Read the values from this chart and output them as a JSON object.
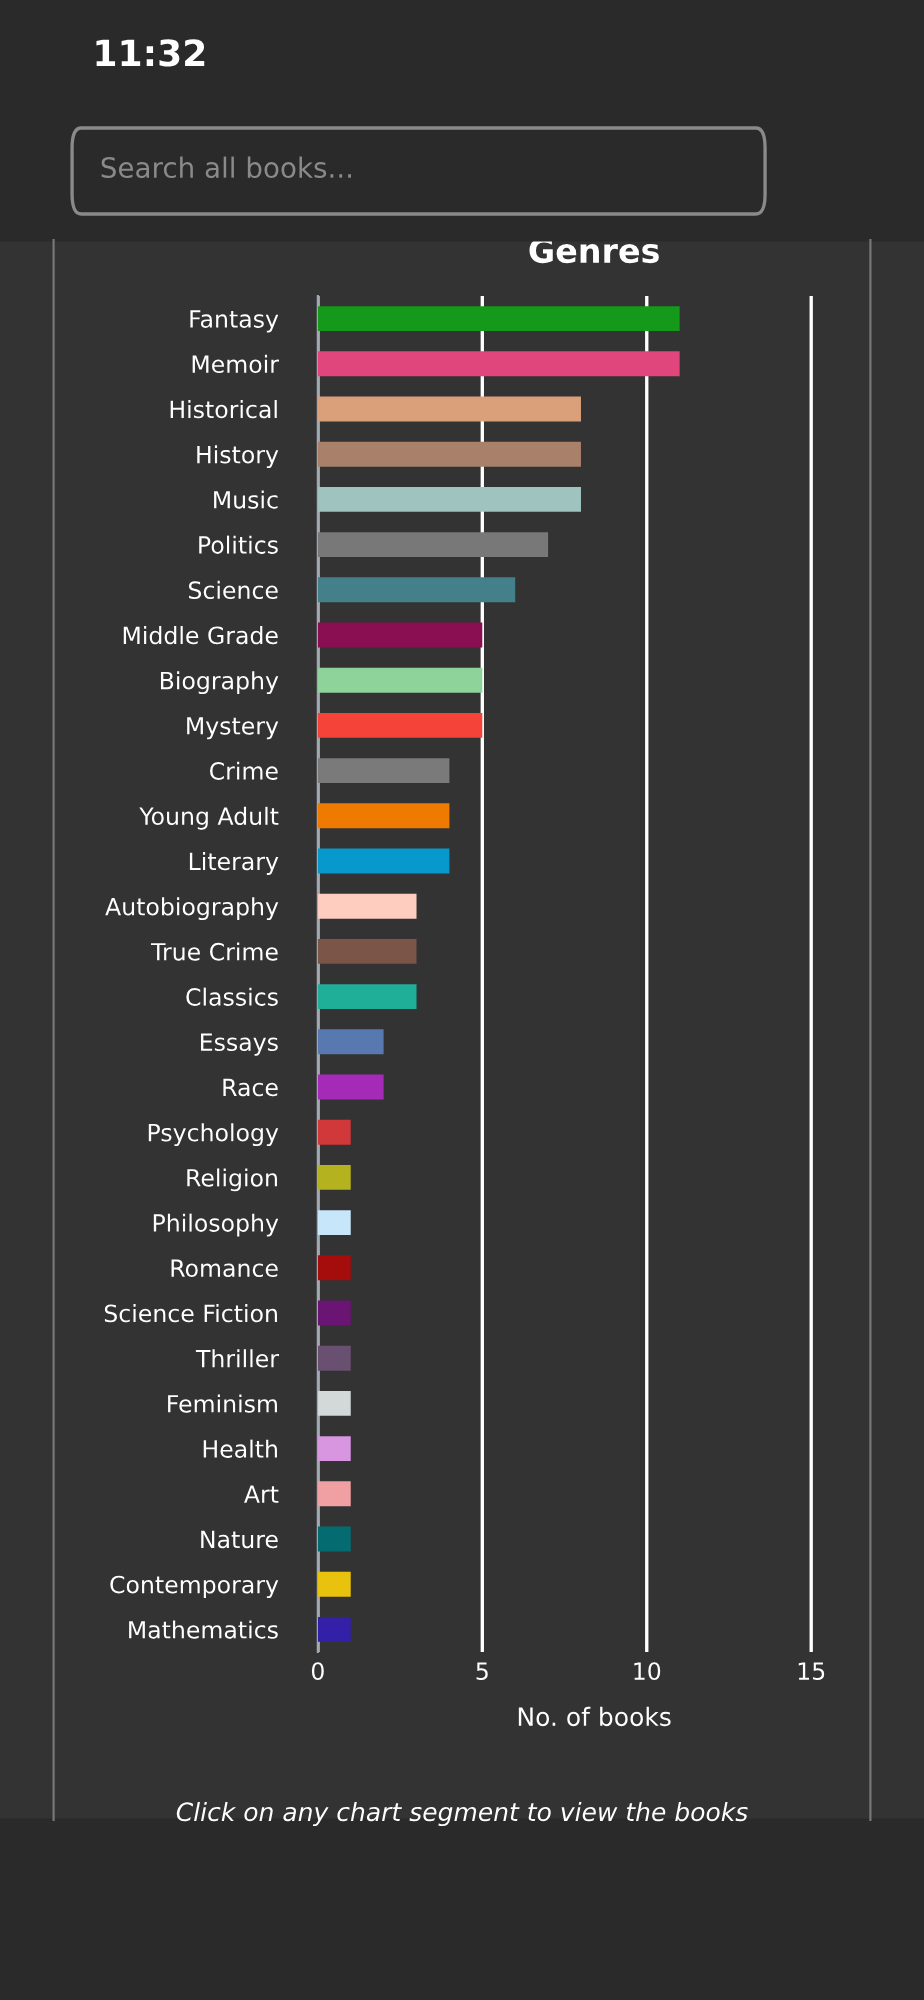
{
  "chart_data": {
    "type": "bar",
    "orientation": "horizontal",
    "title": "Genres",
    "xlabel": "No. of books",
    "categories": [
      "Fantasy",
      "Memoir",
      "Historical",
      "History",
      "Music",
      "Politics",
      "Science",
      "Middle Grade",
      "Biography",
      "Mystery",
      "Crime",
      "Young Adult",
      "Literary",
      "Autobiography",
      "True Crime",
      "Classics",
      "Essays",
      "Race",
      "Psychology",
      "Religion",
      "Philosophy",
      "Romance",
      "Science Fiction",
      "Thriller",
      "Feminism",
      "Health",
      "Art",
      "Nature",
      "Contemporary",
      "Mathematics"
    ],
    "values": [
      11,
      11,
      8,
      8,
      8,
      7,
      6,
      5,
      5,
      5,
      4,
      4,
      4,
      3,
      3,
      3,
      2,
      2,
      1,
      1,
      1,
      1,
      1,
      1,
      1,
      1,
      1,
      1,
      1,
      1
    ],
    "colors": [
      "#14991a",
      "#e0457b",
      "#d9a07a",
      "#a9806a",
      "#9fc4c0",
      "#787878",
      "#44808a",
      "#8a0f52",
      "#8ed49a",
      "#f5433a",
      "#7a7a7a",
      "#ee7a00",
      "#0799cc",
      "#ffcdbf",
      "#7a5548",
      "#1fae98",
      "#5878b0",
      "#a52ab8",
      "#d0383a",
      "#b5b21f",
      "#c8e6fa",
      "#a50c0c",
      "#6a1474",
      "#6a5070",
      "#d3d8d8",
      "#d895e0",
      "#f0a0a2",
      "#046c70",
      "#e8c20c",
      "#3220a8"
    ],
    "xlim": [
      0,
      16.8
    ],
    "xticks": [
      0,
      5,
      10,
      15
    ],
    "grid": "x",
    "annotations": [
      "Click on any chart segment to view the books",
      "11:32",
      "Search all books..."
    ]
  }
}
